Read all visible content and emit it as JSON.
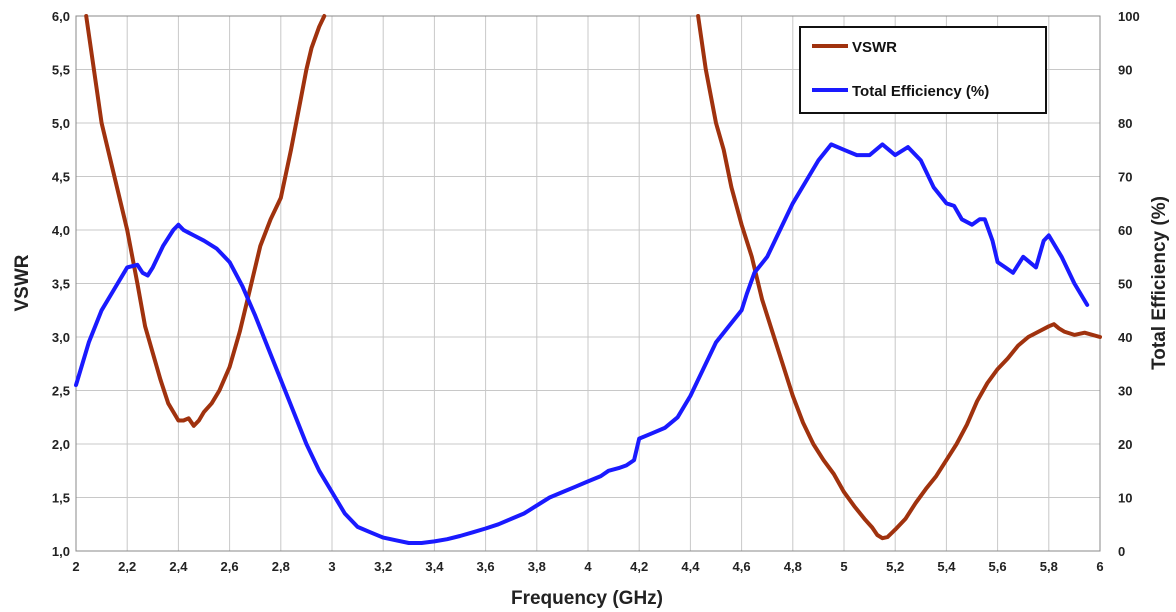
{
  "chart_data": {
    "type": "line",
    "xlabel": "Frequency (GHz)",
    "ylabel": "VSWR",
    "y2label": "Total  Efficiency (%)",
    "xlim": [
      2,
      6
    ],
    "ylim": [
      1.0,
      6.0
    ],
    "y2lim": [
      0,
      100
    ],
    "x_ticks": [
      "2",
      "2,2",
      "2,4",
      "2,6",
      "2,8",
      "3",
      "3,2",
      "3,4",
      "3,6",
      "3,8",
      "4",
      "4,2",
      "4,4",
      "4,6",
      "4,8",
      "5",
      "5,2",
      "5,4",
      "5,6",
      "5,8",
      "6"
    ],
    "y_ticks": [
      "1,0",
      "1,5",
      "2,0",
      "2,5",
      "3,0",
      "3,5",
      "4,0",
      "4,5",
      "5,0",
      "5,5",
      "6,0"
    ],
    "y2_ticks": [
      "0",
      "10",
      "20",
      "30",
      "40",
      "50",
      "60",
      "70",
      "80",
      "90",
      "100"
    ],
    "grid": true,
    "legend_position": "top-right",
    "series": [
      {
        "name": "VSWR",
        "axis": "left",
        "color": "#a0320e",
        "x": [
          2.04,
          2.1,
          2.15,
          2.2,
          2.24,
          2.27,
          2.3,
          2.33,
          2.36,
          2.38,
          2.4,
          2.42,
          2.44,
          2.46,
          2.48,
          2.5,
          2.53,
          2.56,
          2.6,
          2.64,
          2.68,
          2.72,
          2.76,
          2.8,
          2.84,
          2.88,
          2.9,
          2.92,
          2.95,
          2.97
        ],
        "values": [
          6.0,
          5.0,
          4.5,
          4.0,
          3.5,
          3.1,
          2.85,
          2.6,
          2.38,
          2.3,
          2.22,
          2.22,
          2.24,
          2.17,
          2.22,
          2.3,
          2.38,
          2.5,
          2.72,
          3.05,
          3.45,
          3.85,
          4.1,
          4.3,
          4.75,
          5.25,
          5.5,
          5.7,
          5.9,
          6.0
        ]
      },
      {
        "name": "VSWR",
        "axis": "left",
        "color": "#a0320e",
        "x": [
          4.43,
          4.46,
          4.5,
          4.53,
          4.56,
          4.6,
          4.64,
          4.68,
          4.72,
          4.76,
          4.8,
          4.84,
          4.88,
          4.92,
          4.96,
          5.0,
          5.04,
          5.08,
          5.11,
          5.13,
          5.15,
          5.17,
          5.2,
          5.24,
          5.28,
          5.32,
          5.36,
          5.4,
          5.44,
          5.48,
          5.52,
          5.56,
          5.6,
          5.64,
          5.68,
          5.72,
          5.76,
          5.8,
          5.82,
          5.84,
          5.86,
          5.9,
          5.94,
          6.0
        ],
        "values": [
          6.0,
          5.5,
          5.0,
          4.75,
          4.4,
          4.05,
          3.75,
          3.35,
          3.05,
          2.75,
          2.45,
          2.2,
          2.0,
          1.85,
          1.72,
          1.55,
          1.42,
          1.3,
          1.22,
          1.15,
          1.12,
          1.13,
          1.2,
          1.3,
          1.45,
          1.58,
          1.7,
          1.85,
          2.0,
          2.18,
          2.4,
          2.57,
          2.7,
          2.8,
          2.92,
          3.0,
          3.05,
          3.1,
          3.12,
          3.08,
          3.05,
          3.02,
          3.04,
          3.0
        ]
      },
      {
        "name": "Total Efficiency (%)",
        "axis": "right",
        "color": "#1a1aff",
        "x": [
          2.0,
          2.05,
          2.1,
          2.15,
          2.2,
          2.24,
          2.26,
          2.28,
          2.3,
          2.34,
          2.38,
          2.4,
          2.42,
          2.44,
          2.46,
          2.5,
          2.55,
          2.6,
          2.65,
          2.7,
          2.75,
          2.8,
          2.85,
          2.9,
          2.95,
          3.0,
          3.05,
          3.1,
          3.15,
          3.2,
          3.25,
          3.3,
          3.35,
          3.4,
          3.45,
          3.5,
          3.55,
          3.6,
          3.65,
          3.7,
          3.75,
          3.8,
          3.85,
          3.9,
          3.95,
          4.0,
          4.05,
          4.08,
          4.12,
          4.15,
          4.18,
          4.2,
          4.25,
          4.3,
          4.35,
          4.4,
          4.45,
          4.5,
          4.55,
          4.6,
          4.62,
          4.65,
          4.7,
          4.75,
          4.8,
          4.85,
          4.9,
          4.95,
          5.0,
          5.05,
          5.1,
          5.15,
          5.2,
          5.25,
          5.3,
          5.35,
          5.4,
          5.43,
          5.46,
          5.5,
          5.53,
          5.55,
          5.58,
          5.6,
          5.63,
          5.66,
          5.7,
          5.75,
          5.78,
          5.8,
          5.85,
          5.9,
          5.95
        ],
        "values": [
          31,
          39,
          45,
          49,
          53,
          53.5,
          52,
          51.5,
          53,
          57,
          60,
          61,
          60,
          59.5,
          59,
          58,
          56.5,
          54,
          49.5,
          44,
          38,
          32,
          26,
          20,
          15,
          11,
          7,
          4.5,
          3.5,
          2.5,
          2,
          1.5,
          1.5,
          1.8,
          2.2,
          2.8,
          3.5,
          4.2,
          5,
          6,
          7,
          8.5,
          10,
          11,
          12,
          13,
          14,
          15,
          15.5,
          16,
          17,
          21,
          22,
          23,
          25,
          29,
          34,
          39,
          42,
          45,
          48,
          52,
          55,
          60,
          65,
          69,
          73,
          76,
          75,
          74,
          74,
          76,
          74,
          75.5,
          73,
          68,
          65,
          64.5,
          62,
          61,
          62,
          62,
          58,
          54,
          53,
          52,
          55,
          53,
          58,
          59,
          55,
          50,
          46
        ]
      }
    ]
  }
}
